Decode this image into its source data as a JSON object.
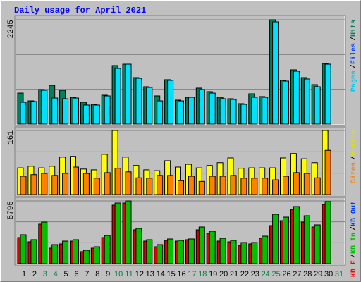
{
  "chart_data": [
    {
      "type": "bar",
      "title": "Daily usage for April 2021",
      "ylim": [
        0,
        2245
      ],
      "yticks": [
        2245
      ],
      "legend": [
        {
          "label": "Pages",
          "color": "#00C8F0"
        },
        {
          "label": "Files",
          "color": "#0040FF"
        },
        {
          "label": "Hits",
          "color": "#00805C"
        }
      ],
      "legend_separator": "/",
      "series": [
        {
          "color": "#00805C",
          "values": [
            667,
            500,
            743,
            834,
            728,
            576,
            470,
            425,
            622,
            1259,
            1289,
            1001,
            804,
            607,
            956,
            516,
            576,
            774,
            698,
            576,
            546,
            440,
            652,
            592,
            2245,
            941,
            1168,
            1001,
            849,
            1305,
            null
          ]
        },
        {
          "color": "#00E0FF",
          "values": [
            470,
            485,
            728,
            561,
            546,
            561,
            410,
            410,
            607,
            1198,
            1289,
            986,
            789,
            500,
            941,
            500,
            576,
            743,
            667,
            546,
            531,
            425,
            576,
            576,
            2200,
            925,
            1138,
            971,
            804,
            1289,
            null
          ]
        }
      ]
    },
    {
      "type": "bar",
      "ylim": [
        0,
        161
      ],
      "yticks": [
        161
      ],
      "legend": [
        {
          "label": "Sites",
          "color": "#FF8000"
        },
        {
          "label": "Visits",
          "color": "#E0E000"
        }
      ],
      "legend_separator": "/",
      "series": [
        {
          "color": "#FFFF00",
          "values": [
            67,
            71,
            67,
            71,
            94,
            96,
            64,
            62,
            101,
            161,
            94,
            73,
            62,
            60,
            85,
            69,
            76,
            67,
            73,
            80,
            92,
            66,
            67,
            67,
            67,
            92,
            103,
            90,
            80,
            161,
            null
          ]
        },
        {
          "color": "#FF8000",
          "values": [
            46,
            50,
            53,
            48,
            53,
            69,
            53,
            41,
            55,
            66,
            57,
            42,
            41,
            48,
            48,
            35,
            46,
            33,
            46,
            46,
            48,
            41,
            41,
            41,
            37,
            46,
            55,
            53,
            42,
            111,
            null
          ]
        }
      ]
    },
    {
      "type": "bar",
      "ylim": [
        0,
        5795
      ],
      "yticks": [
        5795
      ],
      "legend": [
        {
          "label": "KB F",
          "color": "#FF0000"
        },
        {
          "label": "KB In",
          "color": "#00C000"
        },
        {
          "label": "KB Out",
          "color": "#0040FF"
        }
      ],
      "legend_separator": "/",
      "categories": [
        "1",
        "2",
        "3",
        "4",
        "5",
        "6",
        "7",
        "8",
        "9",
        "10",
        "11",
        "12",
        "13",
        "14",
        "15",
        "16",
        "17",
        "18",
        "19",
        "20",
        "21",
        "22",
        "23",
        "24",
        "25",
        "26",
        "27",
        "28",
        "29",
        "30",
        "31"
      ],
      "category_colors": [
        "#000000",
        "#000000",
        "#008040",
        "#008040",
        "#000000",
        "#000000",
        "#000000",
        "#000000",
        "#000000",
        "#008040",
        "#008040",
        "#000000",
        "#000000",
        "#000000",
        "#000000",
        "#000000",
        "#008040",
        "#008040",
        "#000000",
        "#000000",
        "#000000",
        "#000000",
        "#000000",
        "#008040",
        "#008040",
        "#000000",
        "#000000",
        "#000000",
        "#000000",
        "#000000",
        "#008040"
      ],
      "series": [
        {
          "color": "#E00000",
          "values": [
            2409,
            2018,
            3646,
            1432,
            1823,
            2083,
            1107,
            1432,
            2409,
            5404,
            5599,
            3125,
            2083,
            1562,
            2148,
            2083,
            2213,
            3125,
            2800,
            2083,
            2018,
            1693,
            1823,
            2344,
            3516,
            3972,
            5013,
            3841,
            3386,
            5469,
            null
          ]
        },
        {
          "color": "#00C000",
          "values": [
            2670,
            2213,
            3841,
            1758,
            2083,
            2213,
            1237,
            1562,
            2604,
            5599,
            5795,
            3255,
            2213,
            1758,
            2279,
            2148,
            2279,
            3386,
            2995,
            2344,
            2148,
            1953,
            1953,
            2539,
            4558,
            4297,
            5274,
            4427,
            3581,
            5730,
            null
          ]
        }
      ]
    }
  ]
}
